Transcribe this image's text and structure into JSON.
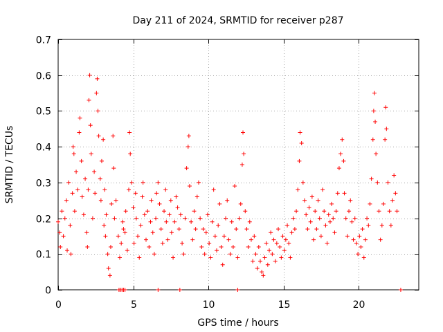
{
  "chart_data": {
    "type": "scatter",
    "title": "Day 211 of 2024, SRMTID for receiver p287",
    "xlabel": "GPS time / hours",
    "ylabel": "SRMTID / TECUs",
    "xlim": [
      0,
      24
    ],
    "ylim": [
      0,
      0.7
    ],
    "xticks": [
      0,
      5,
      10,
      15,
      20
    ],
    "yticks": [
      0,
      0.1,
      0.2,
      0.3,
      0.4,
      0.5,
      0.6,
      0.7
    ],
    "grid": true,
    "marker": "+",
    "color": "#ff0000",
    "series": [
      {
        "name": "SRMTID",
        "points": [
          [
            0.0,
            0.19
          ],
          [
            0.1,
            0.16
          ],
          [
            0.15,
            0.12
          ],
          [
            0.25,
            0.22
          ],
          [
            0.35,
            0.15
          ],
          [
            0.45,
            0.2
          ],
          [
            0.55,
            0.25
          ],
          [
            0.6,
            0.11
          ],
          [
            0.7,
            0.3
          ],
          [
            0.8,
            0.18
          ],
          [
            0.85,
            0.1
          ],
          [
            0.95,
            0.27
          ],
          [
            1.0,
            0.4
          ],
          [
            1.05,
            0.38
          ],
          [
            1.1,
            0.22
          ],
          [
            1.2,
            0.33
          ],
          [
            1.3,
            0.28
          ],
          [
            1.4,
            0.44
          ],
          [
            1.45,
            0.48
          ],
          [
            1.55,
            0.36
          ],
          [
            1.6,
            0.26
          ],
          [
            1.7,
            0.21
          ],
          [
            1.8,
            0.31
          ],
          [
            1.9,
            0.16
          ],
          [
            1.95,
            0.12
          ],
          [
            2.0,
            0.28
          ],
          [
            2.05,
            0.53
          ],
          [
            2.1,
            0.6
          ],
          [
            2.15,
            0.46
          ],
          [
            2.2,
            0.38
          ],
          [
            2.3,
            0.2
          ],
          [
            2.4,
            0.33
          ],
          [
            2.45,
            0.27
          ],
          [
            2.55,
            0.55
          ],
          [
            2.6,
            0.59
          ],
          [
            2.65,
            0.5
          ],
          [
            2.7,
            0.43
          ],
          [
            2.8,
            0.31
          ],
          [
            2.85,
            0.25
          ],
          [
            2.9,
            0.36
          ],
          [
            3.0,
            0.42
          ],
          [
            3.05,
            0.18
          ],
          [
            3.1,
            0.28
          ],
          [
            3.15,
            0.15
          ],
          [
            3.2,
            0.21
          ],
          [
            3.3,
            0.1
          ],
          [
            3.35,
            0.06
          ],
          [
            3.45,
            0.04
          ],
          [
            3.5,
            0.12
          ],
          [
            3.55,
            0.24
          ],
          [
            3.65,
            0.43
          ],
          [
            3.7,
            0.34
          ],
          [
            3.75,
            0.2
          ],
          [
            3.85,
            0.25
          ],
          [
            4.0,
            0.15
          ],
          [
            4.1,
            0.09
          ],
          [
            4.2,
            0.13
          ],
          [
            4.3,
            0.19
          ],
          [
            4.35,
            0.17
          ],
          [
            4.45,
            0.16
          ],
          [
            4.5,
            0.22
          ],
          [
            4.6,
            0.11
          ],
          [
            4.7,
            0.28
          ],
          [
            4.75,
            0.44
          ],
          [
            4.8,
            0.38
          ],
          [
            4.9,
            0.3
          ],
          [
            5.0,
            0.23
          ],
          [
            5.05,
            0.13
          ],
          [
            5.15,
            0.27
          ],
          [
            5.2,
            0.2
          ],
          [
            5.3,
            0.15
          ],
          [
            5.4,
            0.09
          ],
          [
            5.5,
            0.18
          ],
          [
            5.6,
            0.26
          ],
          [
            5.65,
            0.3
          ],
          [
            5.75,
            0.21
          ],
          [
            5.85,
            0.14
          ],
          [
            5.95,
            0.22
          ],
          [
            6.05,
            0.12
          ],
          [
            6.15,
            0.19
          ],
          [
            6.2,
            0.25
          ],
          [
            6.3,
            0.16
          ],
          [
            6.4,
            0.1
          ],
          [
            6.5,
            0.2
          ],
          [
            6.55,
            0.27
          ],
          [
            6.65,
            0.3
          ],
          [
            6.75,
            0.24
          ],
          [
            6.85,
            0.17
          ],
          [
            6.95,
            0.13
          ],
          [
            7.05,
            0.22
          ],
          [
            7.15,
            0.28
          ],
          [
            7.2,
            0.19
          ],
          [
            7.3,
            0.14
          ],
          [
            7.4,
            0.21
          ],
          [
            7.5,
            0.25
          ],
          [
            7.55,
            0.16
          ],
          [
            7.65,
            0.09
          ],
          [
            7.75,
            0.19
          ],
          [
            7.85,
            0.26
          ],
          [
            7.95,
            0.23
          ],
          [
            8.05,
            0.17
          ],
          [
            8.15,
            0.21
          ],
          [
            8.25,
            0.13
          ],
          [
            8.35,
            0.1
          ],
          [
            8.45,
            0.2
          ],
          [
            8.55,
            0.34
          ],
          [
            8.65,
            0.4
          ],
          [
            8.7,
            0.43
          ],
          [
            8.75,
            0.29
          ],
          [
            8.85,
            0.19
          ],
          [
            8.95,
            0.14
          ],
          [
            9.05,
            0.22
          ],
          [
            9.15,
            0.17
          ],
          [
            9.25,
            0.26
          ],
          [
            9.35,
            0.3
          ],
          [
            9.45,
            0.2
          ],
          [
            9.55,
            0.12
          ],
          [
            9.65,
            0.17
          ],
          [
            9.75,
            0.1
          ],
          [
            9.85,
            0.16
          ],
          [
            9.95,
            0.21
          ],
          [
            10.05,
            0.13
          ],
          [
            10.15,
            0.09
          ],
          [
            10.25,
            0.19
          ],
          [
            10.35,
            0.28
          ],
          [
            10.45,
            0.15
          ],
          [
            10.55,
            0.11
          ],
          [
            10.65,
            0.18
          ],
          [
            10.75,
            0.24
          ],
          [
            10.85,
            0.12
          ],
          [
            10.95,
            0.07
          ],
          [
            11.05,
            0.15
          ],
          [
            11.15,
            0.2
          ],
          [
            11.25,
            0.25
          ],
          [
            11.35,
            0.14
          ],
          [
            11.45,
            0.1
          ],
          [
            11.55,
            0.19
          ],
          [
            11.65,
            0.12
          ],
          [
            11.75,
            0.29
          ],
          [
            11.85,
            0.17
          ],
          [
            11.95,
            0.09
          ],
          [
            12.05,
            0.2
          ],
          [
            12.15,
            0.24
          ],
          [
            12.25,
            0.35
          ],
          [
            12.3,
            0.44
          ],
          [
            12.35,
            0.38
          ],
          [
            12.45,
            0.22
          ],
          [
            12.55,
            0.17
          ],
          [
            12.65,
            0.12
          ],
          [
            12.75,
            0.19
          ],
          [
            12.85,
            0.14
          ],
          [
            12.95,
            0.08
          ],
          [
            13.05,
            0.15
          ],
          [
            13.15,
            0.1
          ],
          [
            13.25,
            0.06
          ],
          [
            13.35,
            0.12
          ],
          [
            13.45,
            0.08
          ],
          [
            13.55,
            0.05
          ],
          [
            13.65,
            0.04
          ],
          [
            13.75,
            0.09
          ],
          [
            13.85,
            0.13
          ],
          [
            13.95,
            0.07
          ],
          [
            14.05,
            0.11
          ],
          [
            14.15,
            0.16
          ],
          [
            14.25,
            0.1
          ],
          [
            14.35,
            0.14
          ],
          [
            14.45,
            0.08
          ],
          [
            14.55,
            0.13
          ],
          [
            14.65,
            0.17
          ],
          [
            14.75,
            0.12
          ],
          [
            14.85,
            0.09
          ],
          [
            14.95,
            0.15
          ],
          [
            15.05,
            0.11
          ],
          [
            15.15,
            0.14
          ],
          [
            15.25,
            0.18
          ],
          [
            15.35,
            0.13
          ],
          [
            15.45,
            0.09
          ],
          [
            15.55,
            0.16
          ],
          [
            15.65,
            0.2
          ],
          [
            15.75,
            0.17
          ],
          [
            15.85,
            0.22
          ],
          [
            15.95,
            0.28
          ],
          [
            16.05,
            0.36
          ],
          [
            16.1,
            0.44
          ],
          [
            16.2,
            0.41
          ],
          [
            16.3,
            0.3
          ],
          [
            16.4,
            0.25
          ],
          [
            16.5,
            0.21
          ],
          [
            16.6,
            0.17
          ],
          [
            16.7,
            0.23
          ],
          [
            16.8,
            0.19
          ],
          [
            16.9,
            0.26
          ],
          [
            17.0,
            0.14
          ],
          [
            17.1,
            0.22
          ],
          [
            17.2,
            0.17
          ],
          [
            17.3,
            0.25
          ],
          [
            17.4,
            0.2
          ],
          [
            17.5,
            0.15
          ],
          [
            17.6,
            0.28
          ],
          [
            17.7,
            0.22
          ],
          [
            17.8,
            0.18
          ],
          [
            17.9,
            0.13
          ],
          [
            18.0,
            0.21
          ],
          [
            18.1,
            0.19
          ],
          [
            18.2,
            0.24
          ],
          [
            18.3,
            0.2
          ],
          [
            18.4,
            0.16
          ],
          [
            18.5,
            0.22
          ],
          [
            18.6,
            0.27
          ],
          [
            18.7,
            0.34
          ],
          [
            18.8,
            0.38
          ],
          [
            18.9,
            0.42
          ],
          [
            19.0,
            0.36
          ],
          [
            19.05,
            0.27
          ],
          [
            19.15,
            0.2
          ],
          [
            19.25,
            0.15
          ],
          [
            19.35,
            0.22
          ],
          [
            19.45,
            0.25
          ],
          [
            19.55,
            0.19
          ],
          [
            19.65,
            0.14
          ],
          [
            19.75,
            0.2
          ],
          [
            19.85,
            0.13
          ],
          [
            19.95,
            0.1
          ],
          [
            20.05,
            0.15
          ],
          [
            20.15,
            0.12
          ],
          [
            20.25,
            0.17
          ],
          [
            20.35,
            0.09
          ],
          [
            20.45,
            0.14
          ],
          [
            20.55,
            0.2
          ],
          [
            20.65,
            0.18
          ],
          [
            20.75,
            0.24
          ],
          [
            20.85,
            0.31
          ],
          [
            20.95,
            0.42
          ],
          [
            21.0,
            0.5
          ],
          [
            21.05,
            0.55
          ],
          [
            21.1,
            0.47
          ],
          [
            21.15,
            0.38
          ],
          [
            21.25,
            0.3
          ],
          [
            21.35,
            0.22
          ],
          [
            21.45,
            0.14
          ],
          [
            21.55,
            0.18
          ],
          [
            21.65,
            0.24
          ],
          [
            21.75,
            0.42
          ],
          [
            21.8,
            0.51
          ],
          [
            21.85,
            0.45
          ],
          [
            21.95,
            0.3
          ],
          [
            22.05,
            0.22
          ],
          [
            22.15,
            0.18
          ],
          [
            22.25,
            0.25
          ],
          [
            22.35,
            0.32
          ],
          [
            22.45,
            0.27
          ],
          [
            22.55,
            0.22
          ]
        ]
      }
    ],
    "zero_points_x": [
      4.05,
      4.15,
      4.25,
      4.35,
      4.45,
      6.65,
      8.1,
      11.95,
      22.8
    ]
  }
}
